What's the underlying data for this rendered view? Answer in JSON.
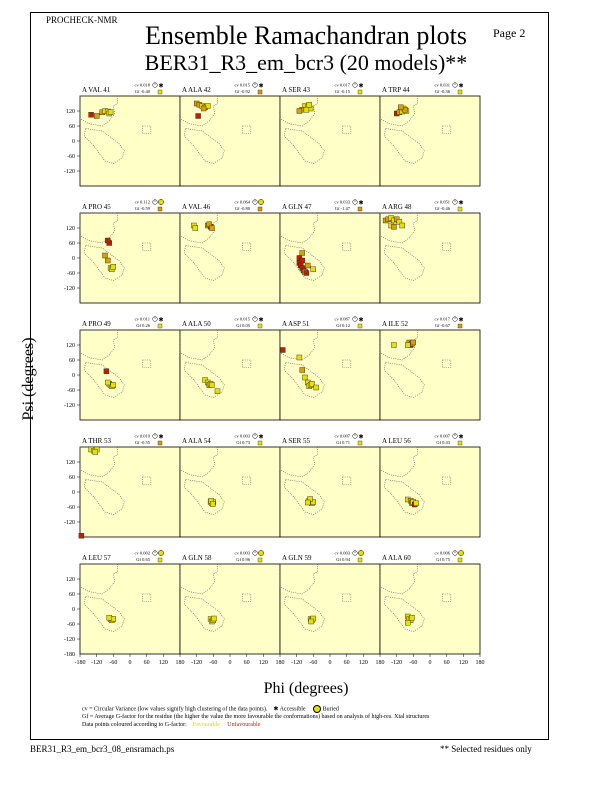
{
  "header": {
    "program": "PROCHECK-NMR",
    "page": "Page  2",
    "title": "Ensemble Ramachandran plots",
    "subtitle": "BER31_R3_em_bcr3 (20 models)**"
  },
  "axes": {
    "xlabel": "Phi (degrees)",
    "ylabel": "Psi (degrees)",
    "xticks": [
      "-180",
      "-120",
      "-60",
      "0",
      "60",
      "120",
      "180"
    ],
    "yticks": [
      "120",
      "60",
      "0",
      "-60",
      "-120"
    ],
    "yticks_bottom": [
      "-180"
    ]
  },
  "legend": {
    "line1": "cv = Circular Variance (low values signify high clustering of the data points).",
    "accessible": "Accessible",
    "buried": "Buried",
    "line2": "Gf = Average G-factor for the residue (the higher the value the more favourable the conformations) based on analysis of high-res. Xtal structures",
    "line3": "Data points coloured according to G-factor:",
    "favourable": "Favourable",
    "unfavourable": "Unfavourable"
  },
  "footer": {
    "left": "BER31_R3_em_bcr3_08_ensramach.ps",
    "right": "** Selected residues only"
  },
  "colors": {
    "panel_bg": "#ffffc8",
    "favourable": "#e8e000",
    "mid": "#d8a000",
    "unfavourable": "#c02000",
    "grid": "#888888"
  },
  "chart_data": {
    "type": "scatter",
    "xlim": [
      -180,
      180
    ],
    "ylim": [
      -180,
      180
    ],
    "panels": [
      {
        "label": "A VAL 41",
        "cv": "0.018",
        "gf": "-0.40",
        "acc": "A",
        "points": [
          [
            -100,
            115,
            1
          ],
          [
            -90,
            120,
            0
          ],
          [
            -80,
            118,
            0
          ],
          [
            -75,
            110,
            0
          ],
          [
            -70,
            115,
            0
          ],
          [
            -140,
            105,
            2
          ],
          [
            -120,
            100,
            1
          ]
        ]
      },
      {
        "label": "A ALA 42",
        "cv": "0.015",
        "gf": "-0.92",
        "acc": "A",
        "points": [
          [
            -120,
            150,
            1
          ],
          [
            -110,
            145,
            1
          ],
          [
            -100,
            140,
            0
          ],
          [
            -90,
            135,
            1
          ],
          [
            -80,
            140,
            0
          ],
          [
            -115,
            100,
            2
          ],
          [
            -95,
            130,
            1
          ]
        ]
      },
      {
        "label": "A SER 43",
        "cv": "0.017",
        "gf": "-0.15",
        "acc": "A",
        "points": [
          [
            -90,
            140,
            0
          ],
          [
            -80,
            135,
            0
          ],
          [
            -70,
            130,
            0
          ],
          [
            -75,
            145,
            0
          ],
          [
            -100,
            125,
            1
          ],
          [
            -110,
            120,
            1
          ],
          [
            -85,
            125,
            0
          ]
        ]
      },
      {
        "label": "A TRP 44",
        "cv": "0.031",
        "gf": "-0.36",
        "acc": "A",
        "points": [
          [
            -120,
            110,
            2
          ],
          [
            -110,
            115,
            1
          ],
          [
            -100,
            118,
            0
          ],
          [
            -95,
            130,
            0
          ],
          [
            -85,
            120,
            0
          ],
          [
            -90,
            125,
            1
          ],
          [
            -105,
            135,
            1
          ]
        ]
      },
      {
        "label": "A PRO 45",
        "cv": "0.112",
        "gf": "-0.59",
        "acc": "B",
        "points": [
          [
            -70,
            -40,
            0
          ],
          [
            -65,
            -45,
            0
          ],
          [
            -60,
            -35,
            0
          ],
          [
            -75,
            60,
            2
          ],
          [
            -80,
            70,
            2
          ],
          [
            -90,
            10,
            1
          ],
          [
            -80,
            -10,
            1
          ]
        ]
      },
      {
        "label": "A VAL 46",
        "cv": "0.064",
        "gf": "-0.80",
        "acc": "B",
        "points": [
          [
            -130,
            130,
            0
          ],
          [
            -125,
            120,
            0
          ],
          [
            -80,
            130,
            1
          ],
          [
            -70,
            125,
            2
          ],
          [
            -75,
            135,
            1
          ],
          [
            -65,
            120,
            1
          ]
        ]
      },
      {
        "label": "A GLN 47",
        "cv": "0.033",
        "gf": "-1.47",
        "acc": "A",
        "points": [
          [
            -110,
            -20,
            2
          ],
          [
            -105,
            -30,
            2
          ],
          [
            -100,
            -40,
            2
          ],
          [
            -95,
            -50,
            2
          ],
          [
            -90,
            -55,
            1
          ],
          [
            -85,
            -60,
            2
          ],
          [
            -110,
            0,
            2
          ],
          [
            -100,
            20,
            1
          ],
          [
            -80,
            -30,
            1
          ],
          [
            -60,
            -45,
            0
          ],
          [
            -100,
            -10,
            2
          ]
        ]
      },
      {
        "label": "A ARG 48",
        "cv": "0.051",
        "gf": "-0.46",
        "acc": "A",
        "points": [
          [
            -160,
            150,
            1
          ],
          [
            -150,
            155,
            1
          ],
          [
            -140,
            160,
            0
          ],
          [
            -130,
            150,
            0
          ],
          [
            -120,
            155,
            1
          ],
          [
            -110,
            145,
            0
          ],
          [
            -100,
            130,
            0
          ],
          [
            -140,
            130,
            0
          ],
          [
            -130,
            125,
            1
          ]
        ]
      },
      {
        "label": "A PRO 49",
        "cv": "0.011",
        "gf": "0.26",
        "acc": "A",
        "points": [
          [
            -75,
            -35,
            0
          ],
          [
            -70,
            -40,
            0
          ],
          [
            -65,
            -45,
            0
          ],
          [
            -60,
            -40,
            0
          ],
          [
            -80,
            -30,
            0
          ],
          [
            -85,
            15,
            2
          ]
        ]
      },
      {
        "label": "A ALA 50",
        "cv": "0.015",
        "gf": "0.05",
        "acc": "A",
        "points": [
          [
            -90,
            -20,
            0
          ],
          [
            -80,
            -30,
            0
          ],
          [
            -75,
            -40,
            1
          ],
          [
            -70,
            -35,
            0
          ],
          [
            -65,
            -40,
            0
          ],
          [
            -45,
            -65,
            0
          ]
        ]
      },
      {
        "label": "A ASP 51",
        "cv": "0.087",
        "gf": "0.12",
        "acc": "A",
        "points": [
          [
            -170,
            100,
            2
          ],
          [
            -100,
            20,
            1
          ],
          [
            -90,
            -10,
            0
          ],
          [
            -80,
            -30,
            0
          ],
          [
            -75,
            -45,
            0
          ],
          [
            -70,
            -40,
            0
          ],
          [
            -65,
            -35,
            0
          ],
          [
            -50,
            -50,
            0
          ],
          [
            -110,
            70,
            0
          ]
        ]
      },
      {
        "label": "A ILE 52",
        "cv": "0.017",
        "gf": "-0.67",
        "acc": "A",
        "points": [
          [
            -130,
            120,
            0
          ],
          [
            -75,
            130,
            1
          ],
          [
            -70,
            120,
            2
          ],
          [
            -65,
            125,
            1
          ],
          [
            -60,
            130,
            1
          ],
          [
            -80,
            120,
            0
          ]
        ]
      },
      {
        "label": "A THR 53",
        "cv": "0.019",
        "gf": "-0.55",
        "acc": "A",
        "points": [
          [
            -140,
            170,
            0
          ],
          [
            -130,
            165,
            0
          ],
          [
            -120,
            170,
            0
          ],
          [
            -125,
            160,
            0
          ],
          [
            -175,
            -175,
            2
          ]
        ]
      },
      {
        "label": "A ALA 54",
        "cv": "0.003",
        "gf": "0.73",
        "acc": "A",
        "points": [
          [
            -70,
            -40,
            0
          ],
          [
            -65,
            -45,
            0
          ],
          [
            -60,
            -40,
            0
          ],
          [
            -68,
            -35,
            0
          ],
          [
            -62,
            -48,
            0
          ]
        ]
      },
      {
        "label": "A SER 55",
        "cv": "0.007",
        "gf": "0.71",
        "acc": "A",
        "points": [
          [
            -75,
            -35,
            0
          ],
          [
            -70,
            -40,
            0
          ],
          [
            -65,
            -45,
            0
          ],
          [
            -60,
            -40,
            0
          ],
          [
            -72,
            -28,
            0
          ],
          [
            -80,
            -42,
            0
          ]
        ]
      },
      {
        "label": "A LEU 56",
        "cv": "0.007",
        "gf": "0.43",
        "acc": "A",
        "points": [
          [
            -80,
            -30,
            0
          ],
          [
            -70,
            -35,
            1
          ],
          [
            -65,
            -45,
            1
          ],
          [
            -60,
            -40,
            0
          ],
          [
            -55,
            -50,
            2
          ],
          [
            -50,
            -45,
            0
          ]
        ]
      },
      {
        "label": "A LEU 57",
        "cv": "0.002",
        "gf": "0.65",
        "acc": "B",
        "points": [
          [
            -70,
            -40,
            0
          ],
          [
            -65,
            -45,
            0
          ],
          [
            -60,
            -40,
            0
          ],
          [
            -75,
            -35,
            0
          ]
        ]
      },
      {
        "label": "A GLN 58",
        "cv": "0.003",
        "gf": "0.96",
        "acc": "B",
        "points": [
          [
            -70,
            -40,
            0
          ],
          [
            -65,
            -50,
            0
          ],
          [
            -60,
            -45,
            0
          ],
          [
            -58,
            -38,
            0
          ]
        ]
      },
      {
        "label": "A GLN 59",
        "cv": "0.003",
        "gf": "0.94",
        "acc": "B",
        "points": [
          [
            -70,
            -40,
            0
          ],
          [
            -65,
            -45,
            0
          ],
          [
            -60,
            -38,
            0
          ],
          [
            -68,
            -50,
            0
          ]
        ]
      },
      {
        "label": "A ALA 60",
        "cv": "0.006",
        "gf": "0.75",
        "acc": "B",
        "points": [
          [
            -80,
            -30,
            0
          ],
          [
            -75,
            -40,
            0
          ],
          [
            -70,
            -45,
            0
          ],
          [
            -80,
            -55,
            0
          ],
          [
            -65,
            -35,
            0
          ]
        ]
      }
    ]
  }
}
